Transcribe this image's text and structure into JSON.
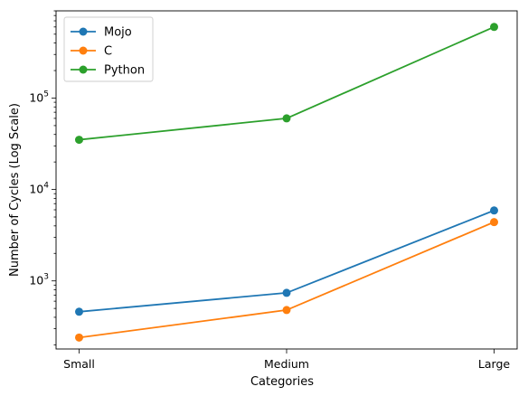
{
  "chart_data": {
    "type": "line",
    "title": "",
    "xlabel": "Categories",
    "ylabel": "Number of Cycles (Log Scale)",
    "yscale": "log",
    "ylim": [
      180,
      900000
    ],
    "categories": [
      "Small",
      "Medium",
      "Large"
    ],
    "y_major_ticks": [
      {
        "value": 1000,
        "base": "10",
        "exp": "3"
      },
      {
        "value": 10000,
        "base": "10",
        "exp": "4"
      },
      {
        "value": 100000,
        "base": "10",
        "exp": "5"
      }
    ],
    "legend_position": "top-left",
    "grid": false,
    "series": [
      {
        "name": "Mojo",
        "color": "#1f77b4",
        "values": [
          460,
          740,
          5900
        ]
      },
      {
        "name": "C",
        "color": "#ff7f0e",
        "values": [
          240,
          480,
          4400
        ]
      },
      {
        "name": "Python",
        "color": "#2ca02c",
        "values": [
          35000,
          60000,
          600000
        ]
      }
    ]
  }
}
